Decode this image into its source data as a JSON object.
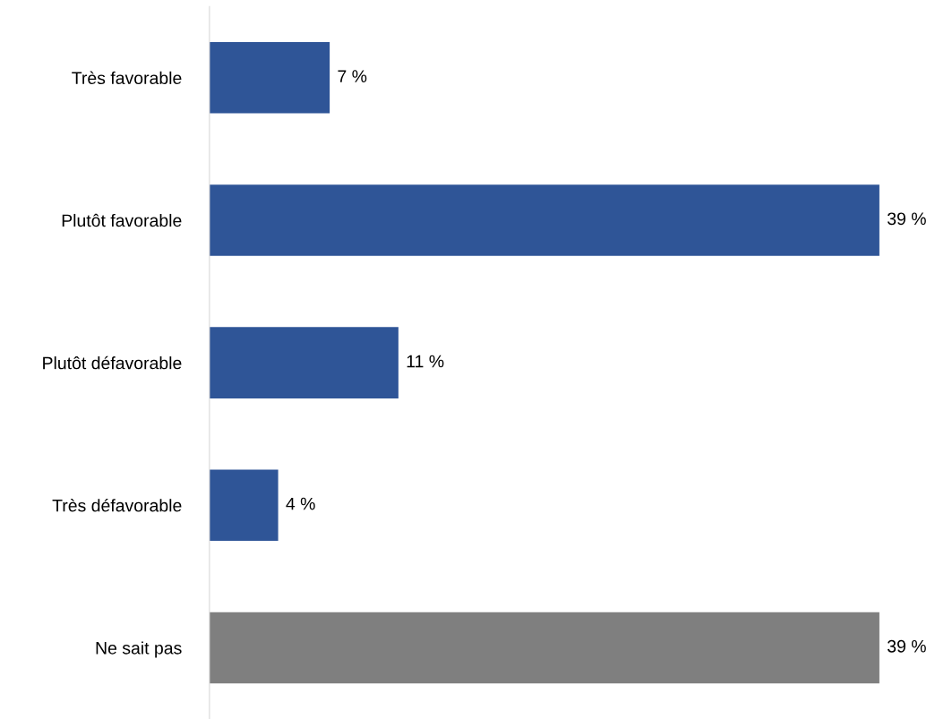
{
  "chart_data": {
    "type": "bar",
    "orientation": "horizontal",
    "categories": [
      "Très favorable",
      "Plutôt favorable",
      "Plutôt défavorable",
      "Très défavorable",
      "Ne sait pas"
    ],
    "values": [
      7,
      39,
      11,
      4,
      39
    ],
    "colors": [
      "#2f5597",
      "#2f5597",
      "#2f5597",
      "#2f5597",
      "#7f7f7f"
    ],
    "value_labels": [
      "7 %",
      "39 %",
      "11 %",
      "4 %",
      "39 %"
    ],
    "grid": false,
    "legend": false
  }
}
